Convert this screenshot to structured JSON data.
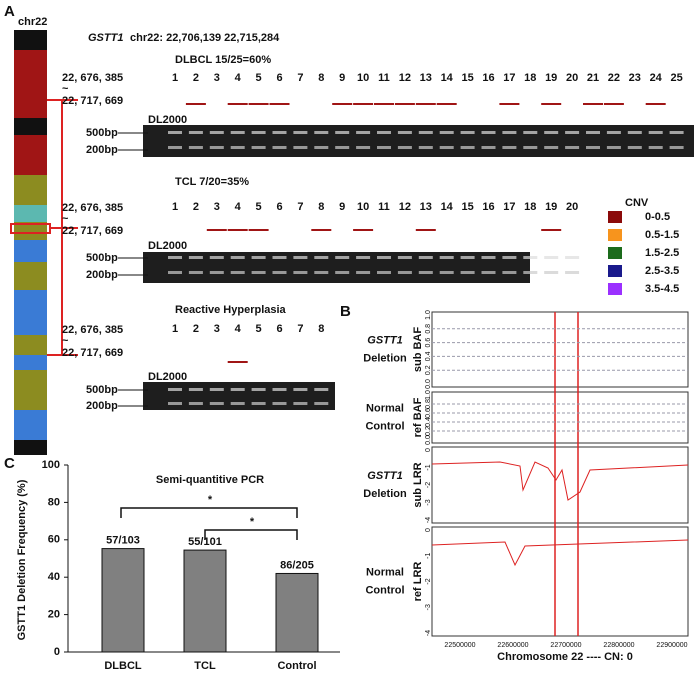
{
  "panels": {
    "a": {
      "label": "A",
      "chromosome": "chr22",
      "gene": "GSTT1",
      "region": "chr22: 22,706,139 22,715,284",
      "coord_start": "22, 676, 385",
      "tilde": "~",
      "coord_end": "22, 717, 669",
      "marker": "DL2000",
      "band_high": "500bp",
      "band_low": "200bp",
      "groups": [
        {
          "name": "DLBCL 15/25=60%",
          "lanes": [
            "1",
            "2",
            "3",
            "4",
            "5",
            "6",
            "7",
            "8",
            "9",
            "10",
            "11",
            "12",
            "13",
            "14",
            "15",
            "16",
            "17",
            "18",
            "19",
            "20",
            "21",
            "22",
            "23",
            "24",
            "25"
          ],
          "deleted_lanes": [
            2,
            4,
            5,
            6,
            9,
            10,
            11,
            12,
            13,
            14,
            17,
            19,
            21,
            22,
            24
          ]
        },
        {
          "name": "TCL    7/20=35%",
          "lanes": [
            "1",
            "2",
            "3",
            "4",
            "5",
            "6",
            "7",
            "8",
            "9",
            "10",
            "11",
            "12",
            "13",
            "14",
            "15",
            "16",
            "17",
            "18",
            "19",
            "20"
          ],
          "deleted_lanes": [
            3,
            4,
            5,
            8,
            10,
            13,
            19
          ]
        },
        {
          "name": "Reactive Hyperplasia",
          "lanes": [
            "1",
            "2",
            "3",
            "4",
            "5",
            "6",
            "7",
            "8"
          ],
          "deleted_lanes": [
            4
          ]
        }
      ],
      "legend_title": "CNV",
      "legend": [
        {
          "label": "0-0.5",
          "color": "#8b0a0a"
        },
        {
          "label": "0.5-1.5",
          "color": "#f7941d"
        },
        {
          "label": "1.5-2.5",
          "color": "#1c6b1c"
        },
        {
          "label": "2.5-3.5",
          "color": "#1a1a8c"
        },
        {
          "label": "3.5-4.5",
          "color": "#9b30ff"
        }
      ]
    },
    "b": {
      "label": "B",
      "tracks": [
        {
          "group": [
            "GSTT1",
            "Deletion"
          ],
          "axis": "sub BAF",
          "ticks": [
            "0.0",
            "0.2",
            "0.4",
            "0.6",
            "0.8",
            "1.0"
          ]
        },
        {
          "group": [
            "Normal",
            "Control"
          ],
          "axis": "ref BAF",
          "ticks": [
            "0.0",
            "0.2",
            "0.4",
            "0.6",
            "0.8",
            "1.0"
          ]
        },
        {
          "group": [
            "GSTT1",
            "Deletion"
          ],
          "axis": "sub LRR",
          "ticks": [
            "-4",
            "-3",
            "-2",
            "-1",
            "0"
          ]
        },
        {
          "group": [
            "Normal",
            "Control"
          ],
          "axis": "ref LRR",
          "ticks": [
            "-4",
            "-3",
            "-2",
            "-1",
            "0"
          ]
        }
      ],
      "xticks": [
        "22500000",
        "22600000",
        "22700000",
        "22800000",
        "22900000"
      ],
      "xlabel": "Chromosome 22 ---- CN: 0"
    },
    "c": {
      "label": "C",
      "significance": [
        "*",
        "*"
      ]
    }
  },
  "chart_data": {
    "type": "bar",
    "title": "Semi-quantitive    PCR",
    "ylabel": "GSTT1 Deletion Frequency (%)",
    "categories": [
      "DLBCL",
      "TCL",
      "Control"
    ],
    "values": [
      55.3,
      54.5,
      42.0
    ],
    "value_labels": [
      "57/103",
      "55/101",
      "86/205"
    ],
    "color": "#808080",
    "ylim": [
      0,
      100
    ],
    "yticks": [
      0,
      20,
      40,
      60,
      80,
      100
    ]
  }
}
